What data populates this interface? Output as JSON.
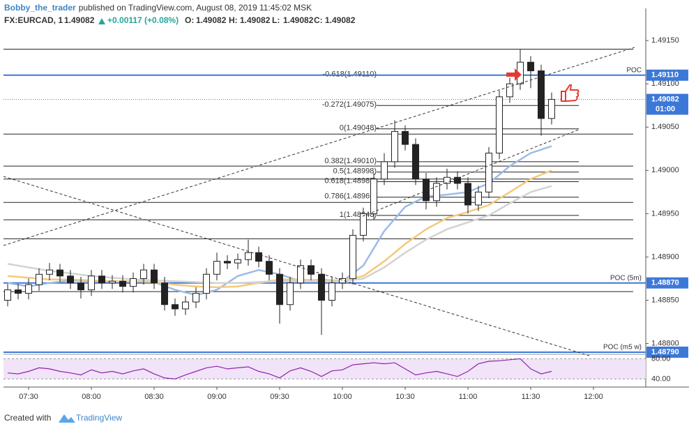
{
  "header": {
    "author": "Bobby_the_trader",
    "published": "published on TradingView.com, August 08, 2019 11:45:02 MSK",
    "symbol": "FX:EURCAD, 1",
    "last": "1.49082",
    "change": "+0.00117 (+0.08%)",
    "ohlc": [
      {
        "label": "O:",
        "value": "1.49082"
      },
      {
        "label": "H:",
        "value": "1.49082"
      },
      {
        "label": "L:",
        "value": "1.49082"
      },
      {
        "label": "C:",
        "value": "1.49082"
      }
    ]
  },
  "footer": {
    "text": "Created with",
    "brand": "TradingView"
  },
  "chart_data": {
    "type": "candlestick",
    "x": [
      "07:20",
      "07:25",
      "07:30",
      "07:35",
      "07:40",
      "07:45",
      "07:50",
      "07:55",
      "08:00",
      "08:05",
      "08:10",
      "08:15",
      "08:20",
      "08:25",
      "08:30",
      "08:35",
      "08:40",
      "08:45",
      "08:50",
      "08:55",
      "09:00",
      "09:05",
      "09:10",
      "09:15",
      "09:20",
      "09:25",
      "09:30",
      "09:35",
      "09:40",
      "09:45",
      "09:50",
      "09:55",
      "10:00",
      "10:05",
      "10:10",
      "10:15",
      "10:20",
      "10:25",
      "10:30",
      "10:35",
      "10:40",
      "10:45",
      "10:50",
      "10:55",
      "11:00",
      "11:05",
      "11:10",
      "11:15",
      "11:20",
      "11:25",
      "11:30",
      "11:35",
      "11:40"
    ],
    "open": [
      1.4885,
      1.48862,
      1.48858,
      1.48868,
      1.4888,
      1.48885,
      1.48878,
      1.4887,
      1.48862,
      1.48878,
      1.4887,
      1.48872,
      1.48866,
      1.48875,
      1.48885,
      1.4887,
      1.48845,
      1.4884,
      1.48848,
      1.48858,
      1.4888,
      1.48895,
      1.48893,
      1.48897,
      1.48905,
      1.48895,
      1.4888,
      1.48845,
      1.4887,
      1.4889,
      1.4888,
      1.4885,
      1.4887,
      1.48875,
      1.48925,
      1.4895,
      1.4899,
      1.4901,
      1.49045,
      1.4903,
      1.4899,
      1.48965,
      1.48985,
      1.48992,
      1.48985,
      1.4896,
      1.48975,
      1.4902,
      1.49085,
      1.491,
      1.49125,
      1.49115,
      1.4906
    ],
    "high": [
      1.48869,
      1.48869,
      1.48875,
      1.48887,
      1.48893,
      1.48892,
      1.48885,
      1.48877,
      1.48885,
      1.48885,
      1.48879,
      1.48879,
      1.48882,
      1.48892,
      1.48892,
      1.48877,
      1.48852,
      1.48855,
      1.48865,
      1.48887,
      1.48905,
      1.48902,
      1.48904,
      1.4892,
      1.48912,
      1.48902,
      1.48887,
      1.48877,
      1.48897,
      1.48897,
      1.48887,
      1.48877,
      1.48882,
      1.48932,
      1.48957,
      1.48997,
      1.4902,
      1.49058,
      1.49052,
      1.49037,
      1.48997,
      1.48992,
      1.49002,
      1.48999,
      1.48992,
      1.48982,
      1.49027,
      1.49092,
      1.49107,
      1.4914,
      1.49132,
      1.49122,
      1.4909
    ],
    "low": [
      1.48843,
      1.48851,
      1.48851,
      1.48861,
      1.48873,
      1.48871,
      1.48863,
      1.48852,
      1.48855,
      1.48863,
      1.48863,
      1.48859,
      1.48859,
      1.48868,
      1.48863,
      1.48838,
      1.48832,
      1.48833,
      1.48841,
      1.48851,
      1.48873,
      1.48886,
      1.48886,
      1.4889,
      1.48888,
      1.48873,
      1.48823,
      1.48838,
      1.48863,
      1.48873,
      1.4881,
      1.48843,
      1.48863,
      1.48868,
      1.48918,
      1.48943,
      1.48983,
      1.49003,
      1.49023,
      1.48983,
      1.48955,
      1.48958,
      1.48978,
      1.48978,
      1.4895,
      1.48953,
      1.48968,
      1.49013,
      1.49078,
      1.49093,
      1.49095,
      1.4904,
      1.49053
    ],
    "close": [
      1.48862,
      1.48858,
      1.48868,
      1.4888,
      1.48885,
      1.48878,
      1.4887,
      1.48862,
      1.48878,
      1.4887,
      1.48872,
      1.48866,
      1.48875,
      1.48885,
      1.4887,
      1.48845,
      1.4884,
      1.48848,
      1.48858,
      1.4888,
      1.48895,
      1.48893,
      1.48897,
      1.48905,
      1.48895,
      1.4888,
      1.48845,
      1.4887,
      1.4889,
      1.4888,
      1.4885,
      1.4887,
      1.48875,
      1.48925,
      1.4895,
      1.4899,
      1.4901,
      1.49045,
      1.4903,
      1.4899,
      1.48965,
      1.48985,
      1.48992,
      1.48985,
      1.4896,
      1.48975,
      1.4902,
      1.49085,
      1.491,
      1.49125,
      1.49115,
      1.4906,
      1.49082
    ],
    "ma_x": [
      "07:20",
      "07:30",
      "07:40",
      "07:50",
      "08:00",
      "08:10",
      "08:20",
      "08:30",
      "08:40",
      "08:50",
      "09:00",
      "09:10",
      "09:20",
      "09:30",
      "09:40",
      "09:50",
      "10:00",
      "10:10",
      "10:20",
      "10:30",
      "10:40",
      "10:50",
      "11:00",
      "11:10",
      "11:20",
      "11:30",
      "11:40"
    ],
    "moving_averages": [
      {
        "color": "#9bbbe8",
        "values": [
          1.4887,
          1.48866,
          1.4887,
          1.48873,
          1.48872,
          1.48872,
          1.48872,
          1.48871,
          1.48862,
          1.48856,
          1.48862,
          1.48878,
          1.48885,
          1.4888,
          1.48872,
          1.48874,
          1.48872,
          1.4889,
          1.4893,
          1.48958,
          1.4897,
          1.48972,
          1.48975,
          1.48985,
          1.49005,
          1.4902,
          1.49028
        ]
      },
      {
        "color": "#f5c97a",
        "values": [
          1.48878,
          1.48876,
          1.48874,
          1.48874,
          1.48873,
          1.48872,
          1.48872,
          1.48871,
          1.48868,
          1.48866,
          1.48865,
          1.48866,
          1.4887,
          1.48874,
          1.48874,
          1.48873,
          1.48873,
          1.48878,
          1.48895,
          1.48915,
          1.48932,
          1.48945,
          1.48952,
          1.4896,
          1.48975,
          1.4899,
          1.49
        ]
      },
      {
        "color": "#d3d3d3",
        "values": [
          1.48892,
          1.48888,
          1.48884,
          1.48881,
          1.48878,
          1.48876,
          1.48874,
          1.48873,
          1.48872,
          1.48871,
          1.4887,
          1.4887,
          1.48871,
          1.48872,
          1.48872,
          1.48872,
          1.48872,
          1.48875,
          1.48888,
          1.48905,
          1.4892,
          1.48932,
          1.4894,
          1.48948,
          1.48962,
          1.48975,
          1.48982
        ]
      }
    ],
    "xlim": [
      "07:18",
      "12:25"
    ],
    "xticks": [
      "07:30",
      "08:00",
      "08:30",
      "09:00",
      "09:30",
      "10:00",
      "10:30",
      "11:00",
      "11:30",
      "12:00"
    ],
    "ylim": [
      1.4879,
      1.49163
    ],
    "yticks": [
      {
        "value": 1.4915,
        "label": "1.49150"
      },
      {
        "value": 1.491,
        "label": "1.49100"
      },
      {
        "value": 1.4905,
        "label": "1.49050"
      },
      {
        "value": 1.49,
        "label": "1.49000"
      },
      {
        "value": 1.4895,
        "label": "1.48950"
      },
      {
        "value": 1.489,
        "label": "1.48900"
      },
      {
        "value": 1.4885,
        "label": "1.48850"
      },
      {
        "value": 1.488,
        "label": "1.48800"
      }
    ],
    "levels": [
      1.4914,
      1.49042,
      1.49005,
      1.4899,
      1.48963,
      1.48943,
      1.48921,
      1.4886
    ],
    "fib": [
      {
        "label": "-0.618(1.49110)",
        "price": 1.4911
      },
      {
        "label": "-0.272(1.49075)",
        "price": 1.49075
      },
      {
        "label": "0(1.49048)",
        "price": 1.49048
      },
      {
        "label": "0.382(1.49010)",
        "price": 1.4901
      },
      {
        "label": "0.5(1.48998)",
        "price": 1.48998
      },
      {
        "label": "0.618(1.48987)",
        "price": 1.48987
      },
      {
        "label": "0.786(1.48969)",
        "price": 1.48969
      },
      {
        "label": "1(1.48948)",
        "price": 1.48948
      }
    ],
    "poc": [
      {
        "name": "POC",
        "price": 1.4911,
        "price_label": "1.49110"
      },
      {
        "name": "POC (5m)",
        "price": 1.4887,
        "price_label": "1.48870"
      },
      {
        "name": "POC (m5 w)",
        "price": 1.4879,
        "price_label": "1.48790"
      }
    ],
    "current": {
      "price": 1.49082,
      "label": "1.49082",
      "countdown": "01:00"
    },
    "rsi": {
      "color": "#8e24aa",
      "ylim": [
        24,
        86
      ],
      "levels": [
        {
          "value": 80,
          "label": "80.00"
        },
        {
          "value": 40,
          "label": "40.00"
        }
      ],
      "values": [
        52,
        50,
        55,
        62,
        60,
        55,
        52,
        48,
        58,
        52,
        55,
        50,
        56,
        60,
        50,
        42,
        40,
        48,
        55,
        62,
        65,
        60,
        62,
        64,
        55,
        50,
        42,
        56,
        62,
        55,
        45,
        56,
        58,
        68,
        70,
        72,
        70,
        72,
        60,
        48,
        52,
        55,
        50,
        45,
        55,
        70,
        75,
        76,
        78,
        80,
        60,
        50,
        55
      ]
    }
  }
}
